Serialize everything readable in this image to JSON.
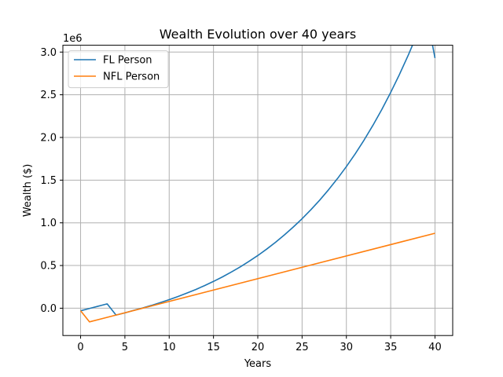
{
  "chart_data": {
    "type": "line",
    "title": "Wealth Evolution over 40 years",
    "xlabel": "Years",
    "ylabel": "Wealth ($)",
    "y_offset_label": "1e6",
    "xlim": [
      -2,
      42
    ],
    "ylim": [
      -320000,
      3080000
    ],
    "grid": true,
    "legend_position": "top-left",
    "x_ticks": [
      0,
      5,
      10,
      15,
      20,
      25,
      30,
      35,
      40
    ],
    "x_tick_labels": [
      "0",
      "5",
      "10",
      "15",
      "20",
      "25",
      "30",
      "35",
      "40"
    ],
    "y_ticks": [
      0,
      500000,
      1000000,
      1500000,
      2000000,
      2500000,
      3000000
    ],
    "y_tick_labels": [
      "0.0",
      "0.5",
      "1.0",
      "1.5",
      "2.0",
      "2.5",
      "3.0"
    ],
    "series": [
      {
        "name": "FL Person",
        "color": "#1f77b4",
        "x": [
          0,
          1,
          2,
          3,
          4,
          5,
          6,
          7,
          8,
          9,
          10,
          11,
          12,
          13,
          14,
          15,
          16,
          17,
          18,
          19,
          20,
          21,
          22,
          23,
          24,
          25,
          26,
          27,
          28,
          29,
          30,
          31,
          32,
          33,
          34,
          35,
          36,
          37,
          38,
          39,
          40
        ],
        "y": [
          -30000,
          -3000,
          24000,
          51000,
          -80000,
          -55000,
          -25000,
          3000,
          33000,
          66000,
          100000,
          137000,
          177000,
          219000,
          265000,
          314000,
          366000,
          423000,
          483000,
          548000,
          617000,
          692000,
          772000,
          858000,
          950000,
          1048000,
          1154000,
          1267000,
          1389000,
          1519000,
          1659000,
          1809000,
          1970000,
          2143000,
          2328000,
          2527000,
          2740000,
          2968000,
          3212000,
          3474000,
          2930000
        ]
      },
      {
        "name": "NFL Person",
        "color": "#ff7f0e",
        "x": [
          0,
          1,
          40
        ],
        "y": [
          -30000,
          -160000,
          878000
        ]
      }
    ]
  }
}
